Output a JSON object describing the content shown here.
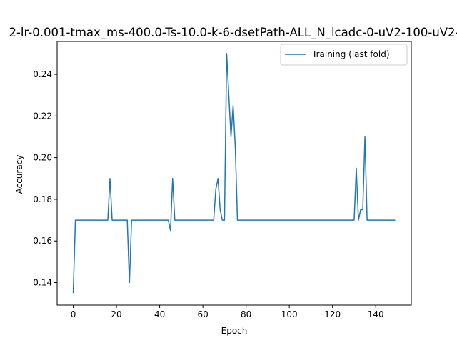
{
  "chart_data": {
    "type": "line",
    "title": "2-lr-0.001-tmax_ms-400.0-Ts-10.0-k-6-dsetPath-ALL_N_lcadc-0-uV2-100-uV2-",
    "xlabel": "Epoch",
    "ylabel": "Accuracy",
    "xlim": [
      -7.45,
      156.45
    ],
    "ylim": [
      0.1292,
      0.2558
    ],
    "xticks": [
      0,
      20,
      40,
      60,
      80,
      100,
      120,
      140
    ],
    "xtick_labels": [
      "0",
      "20",
      "40",
      "60",
      "80",
      "100",
      "120",
      "140"
    ],
    "yticks": [
      0.14,
      0.16,
      0.18,
      0.2,
      0.22,
      0.24
    ],
    "ytick_labels": [
      "0.14",
      "0.16",
      "0.18",
      "0.20",
      "0.22",
      "0.24"
    ],
    "grid": false,
    "legend_position": "upper-right",
    "series": [
      {
        "name": "Training (last fold)",
        "color": "#1f77b4",
        "points": [
          [
            0,
            0.135
          ],
          [
            1,
            0.17
          ],
          [
            16,
            0.17
          ],
          [
            17,
            0.19
          ],
          [
            18,
            0.17
          ],
          [
            25,
            0.17
          ],
          [
            26,
            0.14
          ],
          [
            27,
            0.17
          ],
          [
            44,
            0.17
          ],
          [
            45,
            0.165
          ],
          [
            46,
            0.19
          ],
          [
            47,
            0.17
          ],
          [
            65,
            0.17
          ],
          [
            66,
            0.185
          ],
          [
            67,
            0.19
          ],
          [
            68,
            0.175
          ],
          [
            69,
            0.17
          ],
          [
            70,
            0.17
          ],
          [
            71,
            0.25
          ],
          [
            72,
            0.23
          ],
          [
            73,
            0.21
          ],
          [
            74,
            0.225
          ],
          [
            75,
            0.205
          ],
          [
            76,
            0.17
          ],
          [
            130,
            0.17
          ],
          [
            131,
            0.195
          ],
          [
            132,
            0.17
          ],
          [
            133,
            0.175
          ],
          [
            134,
            0.175
          ],
          [
            135,
            0.21
          ],
          [
            136,
            0.17
          ],
          [
            149,
            0.17
          ]
        ]
      }
    ]
  }
}
